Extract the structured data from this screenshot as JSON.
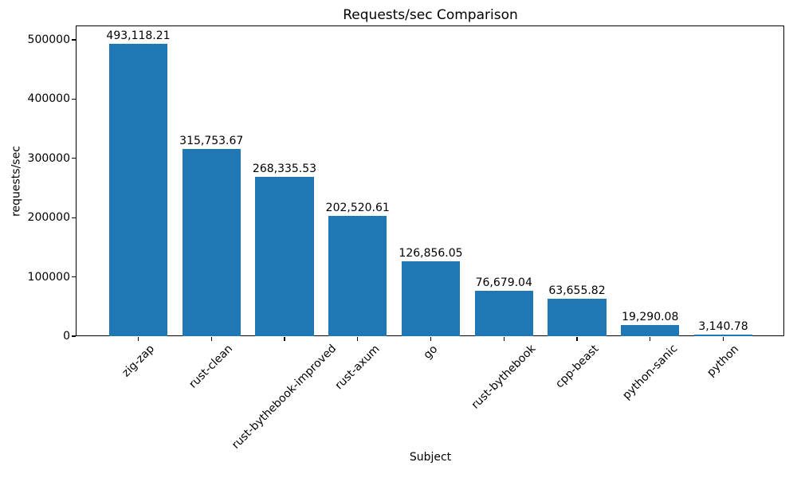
{
  "chart_data": {
    "type": "bar",
    "title": "Requests/sec Comparison",
    "xlabel": "Subject",
    "ylabel": "requests/sec",
    "categories": [
      "zig-zap",
      "rust-clean",
      "rust-bythebook-improved",
      "rust-axum",
      "go",
      "rust-bythebook",
      "cpp-beast",
      "python-sanic",
      "python"
    ],
    "values": [
      493118.21,
      315753.67,
      268335.53,
      202520.61,
      126856.05,
      76679.04,
      63655.82,
      19290.08,
      3140.78
    ],
    "value_labels": [
      "493,118.21",
      "315,753.67",
      "268,335.53",
      "202,520.61",
      "126,856.05",
      "76,679.04",
      "63,655.82",
      "19,290.08",
      "3,140.78"
    ],
    "yticks": [
      0,
      100000,
      200000,
      300000,
      400000,
      500000
    ],
    "ytick_labels": [
      "0",
      "100000",
      "200000",
      "300000",
      "400000",
      "500000"
    ],
    "ylim": [
      0,
      500000
    ],
    "bar_color": "#1f77b4",
    "grid": false,
    "legend": null,
    "x_tick_rotation": 45
  }
}
